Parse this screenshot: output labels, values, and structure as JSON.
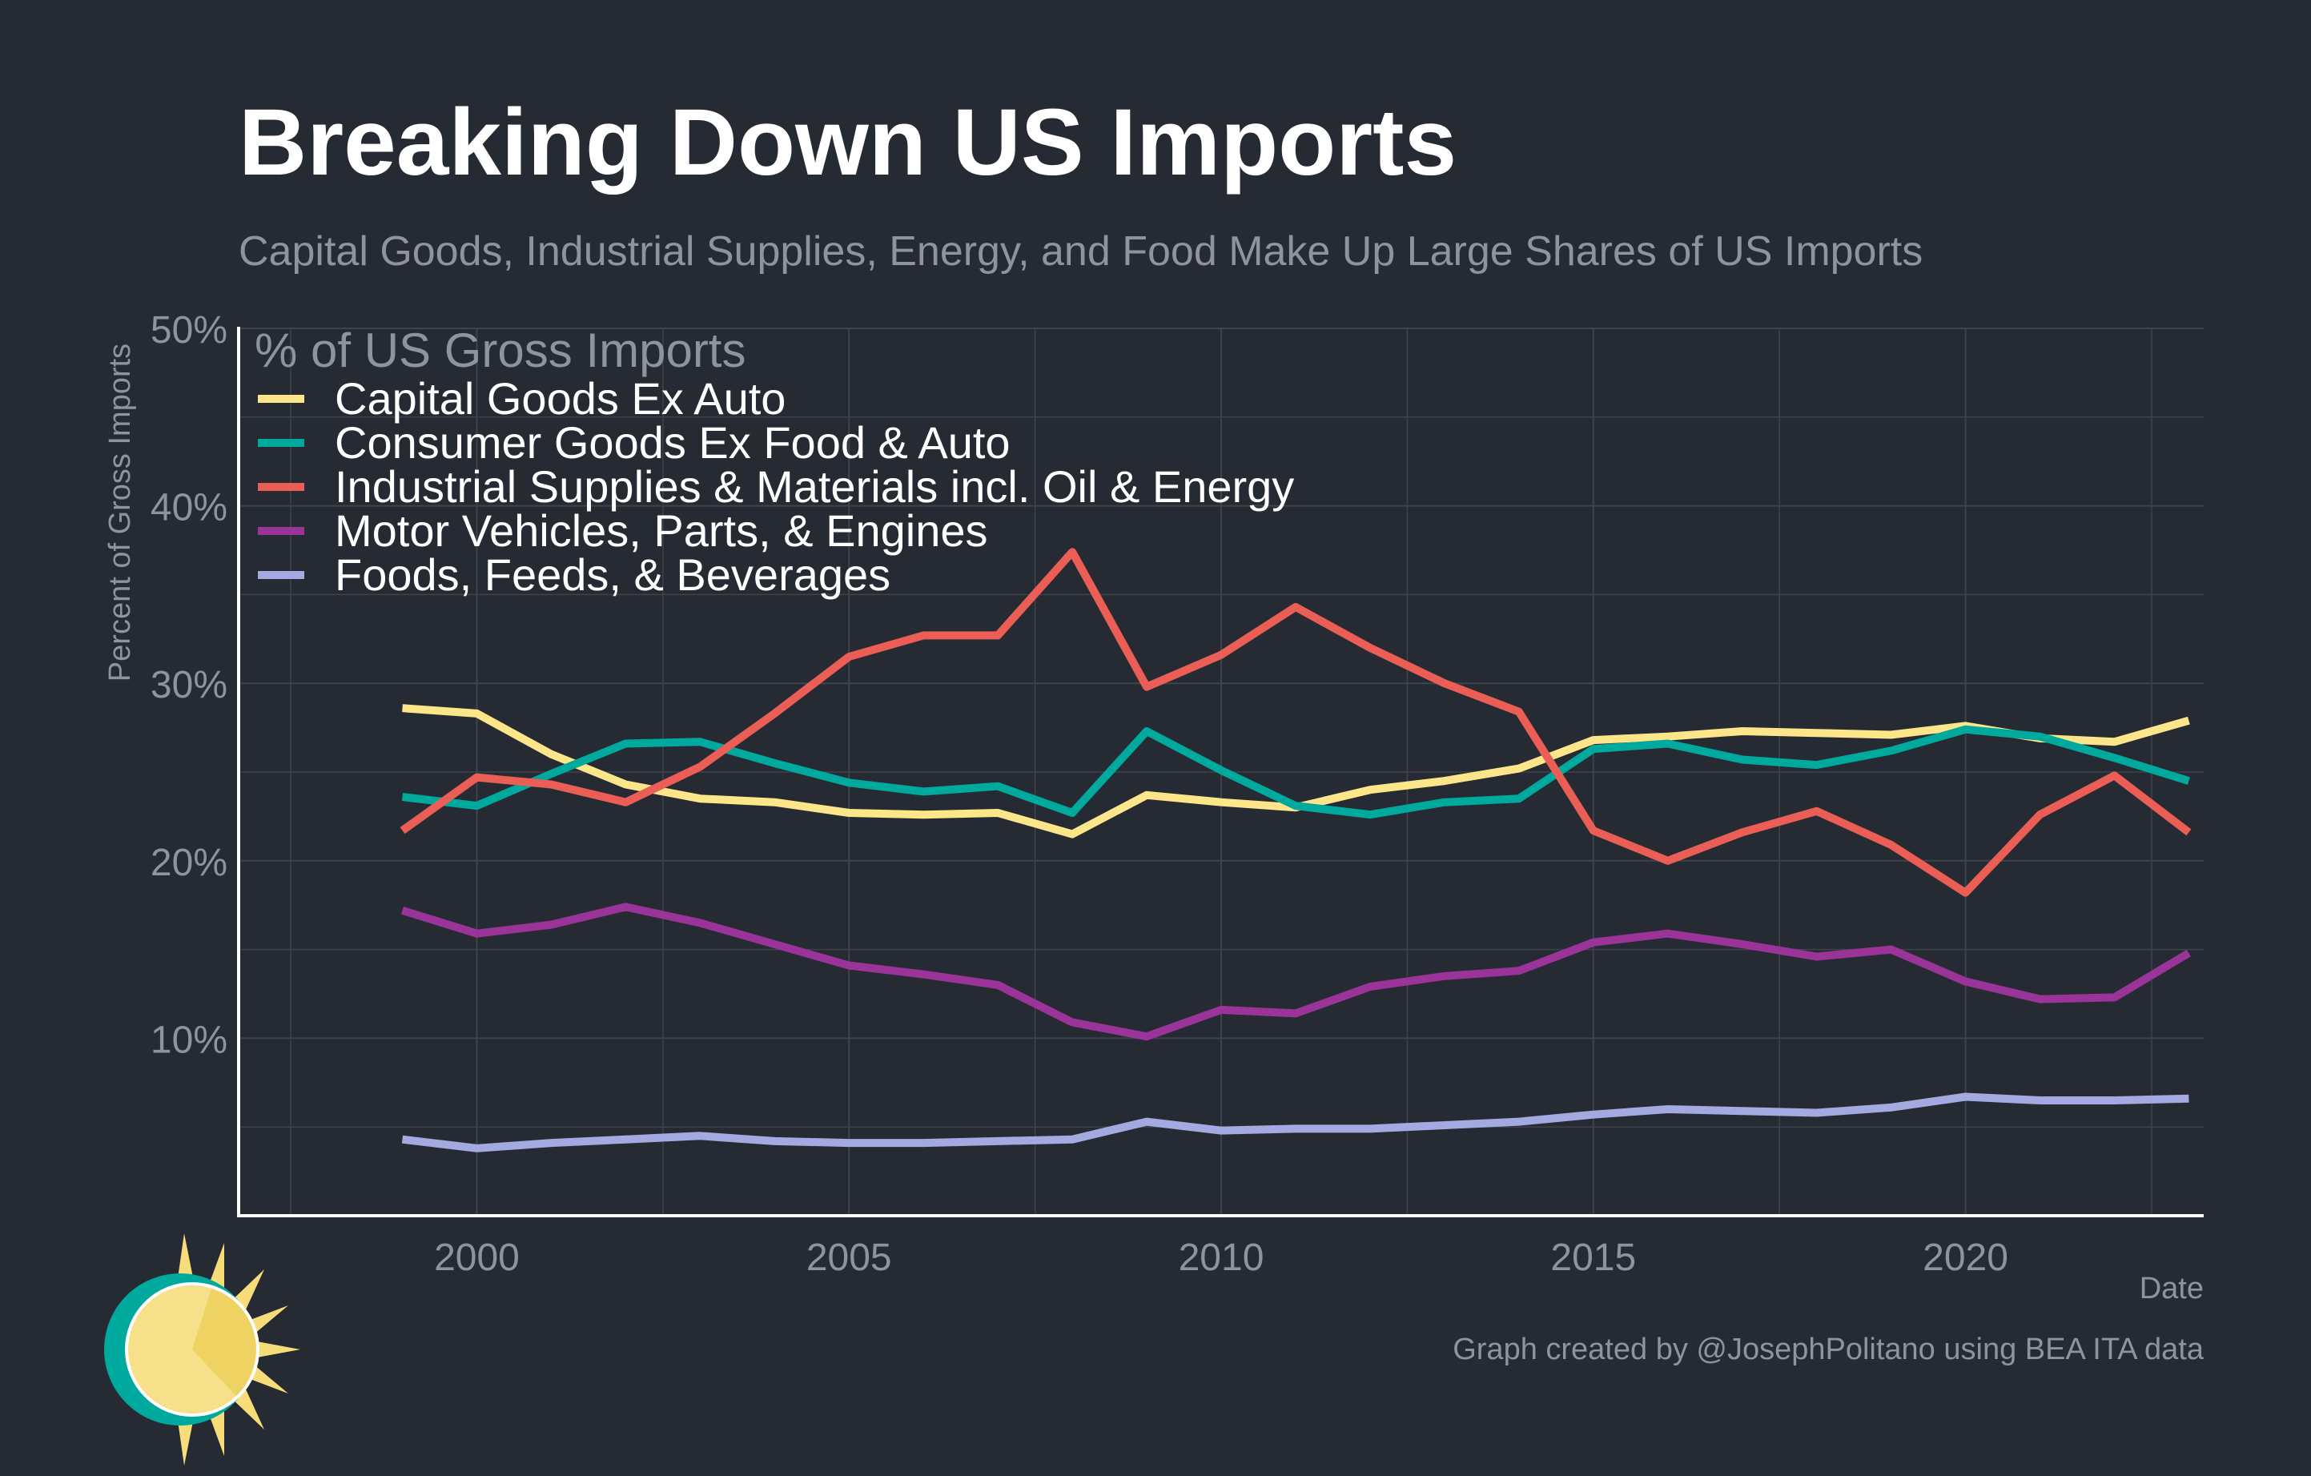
{
  "title": "Breaking Down US Imports",
  "subtitle": "Capital Goods, Industrial Supplies, Energy, and Food Make Up Large Shares of US Imports",
  "caption": "Graph created by @JosephPolitano using BEA ITA data",
  "colors": {
    "background": "#252a33",
    "grid": "#3e434c",
    "axis": "#ffffff",
    "muted_text": "#8f939b"
  },
  "logo_icon": "sun-icon",
  "chart_data": {
    "type": "line",
    "xlabel": "Date",
    "ylabel": "Percent of Gross Imports",
    "xlim": [
      1996.8,
      2023.2
    ],
    "ylim": [
      0,
      50
    ],
    "x_ticks": [
      2000,
      2005,
      2010,
      2015,
      2020
    ],
    "y_ticks": [
      10,
      20,
      30,
      40,
      50
    ],
    "y_tick_labels": [
      "10%",
      "20%",
      "30%",
      "40%",
      "50%"
    ],
    "grid": true,
    "legend_title": "% of US Gross Imports",
    "legend_position": "top-left",
    "x": [
      1999,
      2000,
      2001,
      2002,
      2003,
      2004,
      2005,
      2006,
      2007,
      2008,
      2009,
      2010,
      2011,
      2012,
      2013,
      2014,
      2015,
      2016,
      2017,
      2018,
      2019,
      2020,
      2021,
      2022,
      2023
    ],
    "series": [
      {
        "name": "Capital Goods Ex Auto",
        "color": "#fde68a",
        "values": [
          28.6,
          28.3,
          26.0,
          24.3,
          23.5,
          23.3,
          22.7,
          22.6,
          22.7,
          21.5,
          23.7,
          23.3,
          23.0,
          24.0,
          24.5,
          25.2,
          26.8,
          27.0,
          27.3,
          27.2,
          27.1,
          27.6,
          26.9,
          26.7,
          27.9
        ]
      },
      {
        "name": "Consumer Goods Ex Food & Auto",
        "color": "#00a99d",
        "values": [
          23.6,
          23.1,
          24.9,
          26.6,
          26.7,
          25.5,
          24.4,
          23.9,
          24.2,
          22.7,
          27.3,
          25.1,
          23.1,
          22.6,
          23.3,
          23.5,
          26.3,
          26.6,
          25.7,
          25.4,
          26.2,
          27.4,
          27.0,
          25.8,
          24.5
        ]
      },
      {
        "name": "Industrial Supplies & Materials incl. Oil & Energy",
        "color": "#eb5e55",
        "values": [
          21.7,
          24.7,
          24.3,
          23.3,
          25.3,
          28.3,
          31.5,
          32.7,
          32.7,
          37.4,
          29.8,
          31.6,
          34.3,
          32.0,
          30.0,
          28.4,
          21.7,
          20.0,
          21.6,
          22.8,
          20.9,
          18.2,
          22.6,
          24.8,
          21.6
        ]
      },
      {
        "name": "Motor Vehicles, Parts, & Engines",
        "color": "#9a3498",
        "values": [
          17.2,
          15.9,
          16.4,
          17.4,
          16.5,
          15.3,
          14.1,
          13.6,
          13.0,
          10.9,
          10.1,
          11.6,
          11.4,
          12.9,
          13.5,
          13.8,
          15.4,
          15.9,
          15.3,
          14.6,
          15.0,
          13.2,
          12.2,
          12.3,
          14.8
        ]
      },
      {
        "name": "Foods, Feeds, & Beverages",
        "color": "#a4a9df",
        "values": [
          4.3,
          3.8,
          4.1,
          4.3,
          4.5,
          4.2,
          4.1,
          4.1,
          4.2,
          4.3,
          5.3,
          4.8,
          4.9,
          4.9,
          5.1,
          5.3,
          5.7,
          6.0,
          5.9,
          5.8,
          6.1,
          6.7,
          6.5,
          6.5,
          6.6
        ]
      }
    ]
  }
}
